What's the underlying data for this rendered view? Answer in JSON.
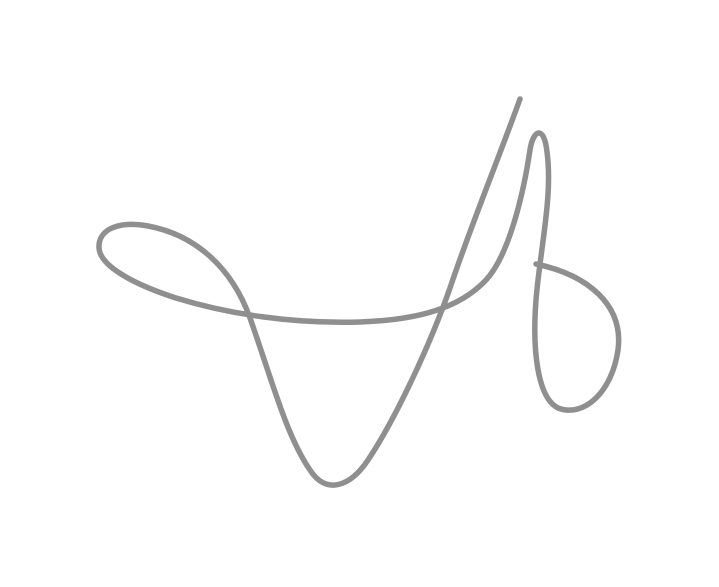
{
  "drawing": {
    "background_color": "#ffffff",
    "stroke_color": "#8f8f8f",
    "strokes": [
      "signature-stroke"
    ]
  }
}
